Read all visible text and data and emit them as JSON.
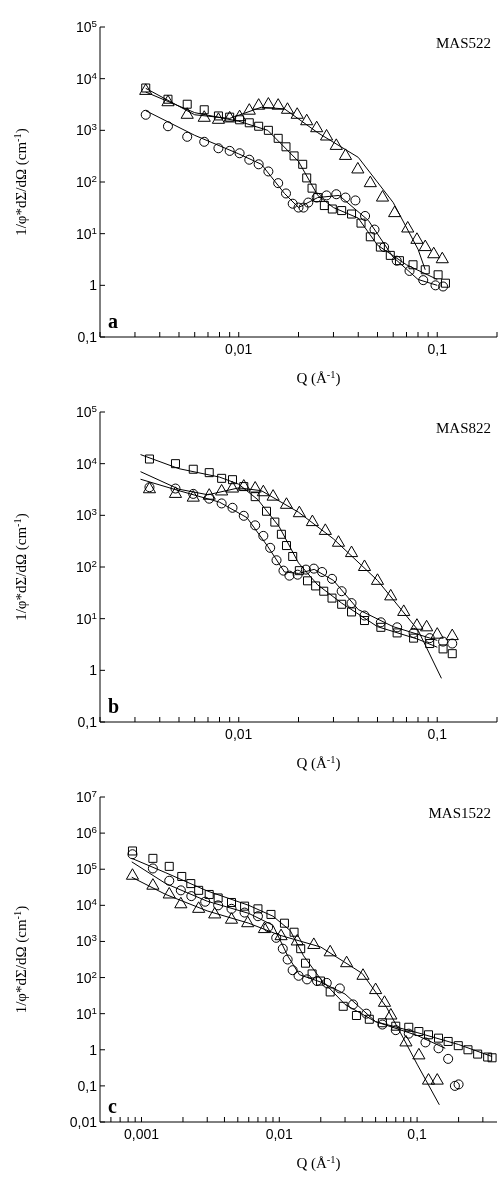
{
  "chart_data": [
    {
      "type": "scatter",
      "log": "xy",
      "xlabel": "Q (Å$^{-1}$)",
      "ylabel": "1/φ*dΣ/dΩ (cm$^{-1}$)",
      "annotations": [
        "MAS522",
        "a"
      ],
      "xlim": [
        0.002,
        0.2
      ],
      "ylim": [
        0.1,
        100000
      ],
      "xticks": [
        {
          "value": 0.002,
          "label": null
        },
        {
          "value": 0.003,
          "label": null
        },
        {
          "value": 0.004,
          "label": null
        },
        {
          "value": 0.005,
          "label": null
        },
        {
          "value": 0.006,
          "label": null
        },
        {
          "value": 0.007,
          "label": null
        },
        {
          "value": 0.008,
          "label": null
        },
        {
          "value": 0.009,
          "label": null
        },
        {
          "value": 0.01,
          "label": "0,01"
        },
        {
          "value": 0.02,
          "label": null
        },
        {
          "value": 0.03,
          "label": null
        },
        {
          "value": 0.04,
          "label": null
        },
        {
          "value": 0.05,
          "label": null
        },
        {
          "value": 0.06,
          "label": null
        },
        {
          "value": 0.07,
          "label": null
        },
        {
          "value": 0.08,
          "label": null
        },
        {
          "value": 0.09,
          "label": null
        },
        {
          "value": 0.1,
          "label": "0,1"
        },
        {
          "value": 0.2,
          "label": null
        }
      ],
      "yticks": [
        {
          "value": 0.1,
          "label": "0,1"
        },
        {
          "value": 1,
          "label": "1"
        },
        {
          "value": 10,
          "label": "10$^{1}$"
        },
        {
          "value": 100,
          "label": "10$^{2}$"
        },
        {
          "value": 1000,
          "label": "10$^{3}$"
        },
        {
          "value": 10000,
          "label": "10$^{4}$"
        },
        {
          "value": 100000,
          "label": "10$^{5}$"
        }
      ],
      "series": [
        {
          "marker": "circle",
          "color": "#000000",
          "x": [
            0.0034,
            0.0044,
            0.0055,
            0.0067,
            0.0079,
            0.009,
            0.0101,
            0.0113,
            0.0126,
            0.0141,
            0.0158,
            0.0173,
            0.0187,
            0.02,
            0.0212,
            0.0224,
            0.0247,
            0.0277,
            0.031,
            0.0345,
            0.0387,
            0.0433,
            0.0483,
            0.054,
            0.0625,
            0.0725,
            0.085,
            0.098,
            0.107
          ],
          "values": [
            2000,
            1200,
            750,
            600,
            450,
            400,
            360,
            270,
            220,
            160,
            95,
            60,
            38,
            32,
            32,
            40,
            50,
            55,
            58,
            50,
            44,
            22,
            12,
            5.5,
            3,
            1.9,
            1.26,
            1.0,
            0.95
          ]
        },
        {
          "marker": "square",
          "color": "#000000",
          "x": [
            0.0034,
            0.0044,
            0.0055,
            0.0067,
            0.0079,
            0.009,
            0.0101,
            0.0113,
            0.0126,
            0.0141,
            0.0158,
            0.0173,
            0.019,
            0.021,
            0.022,
            0.0234,
            0.025,
            0.027,
            0.0296,
            0.033,
            0.037,
            0.0413,
            0.046,
            0.0517,
            0.058,
            0.0645,
            0.0755,
            0.087,
            0.101,
            0.11
          ],
          "values": [
            6600,
            4000,
            3200,
            2500,
            1900,
            1800,
            1600,
            1400,
            1200,
            1000,
            700,
            480,
            320,
            220,
            120,
            76,
            50,
            35,
            30,
            28,
            24,
            16,
            8.7,
            5.5,
            3.8,
            3,
            2.5,
            2,
            1.6,
            1.1
          ]
        },
        {
          "marker": "triangle",
          "color": "#000000",
          "x": [
            0.0034,
            0.0044,
            0.0055,
            0.0067,
            0.0079,
            0.009,
            0.0101,
            0.0113,
            0.0126,
            0.0141,
            0.0158,
            0.0176,
            0.0197,
            0.022,
            0.0247,
            0.0277,
            0.031,
            0.0345,
            0.0398,
            0.046,
            0.053,
            0.061,
            0.071,
            0.079,
            0.087,
            0.096,
            0.106
          ],
          "values": [
            5800,
            3500,
            2000,
            1750,
            1600,
            1700,
            1800,
            2400,
            3000,
            3150,
            3000,
            2500,
            2000,
            1500,
            1100,
            760,
            500,
            320,
            175,
            95,
            50,
            25,
            12.6,
            7.6,
            5.5,
            4,
            3.2
          ]
        },
        {
          "type": "line",
          "color": "#000000",
          "x": [
            0.0034,
            0.006,
            0.01,
            0.013,
            0.017,
            0.02,
            0.025,
            0.032,
            0.045,
            0.06,
            0.08,
            0.1
          ],
          "values": [
            2400,
            800,
            350,
            220,
            60,
            32,
            50,
            55,
            18,
            3.5,
            1.3,
            1.0
          ]
        },
        {
          "type": "line",
          "color": "#000000",
          "x": [
            0.0034,
            0.006,
            0.01,
            0.014,
            0.02,
            0.025,
            0.03,
            0.04,
            0.05,
            0.07,
            0.1
          ],
          "values": [
            5500,
            2200,
            1500,
            1000,
            250,
            55,
            32,
            20,
            6,
            2.5,
            1.3
          ]
        },
        {
          "type": "line",
          "color": "#000000",
          "x": [
            0.0034,
            0.006,
            0.009,
            0.013,
            0.017,
            0.025,
            0.04,
            0.06,
            0.08,
            0.087
          ],
          "values": [
            6500,
            2000,
            1700,
            2800,
            2600,
            900,
            300,
            40,
            5,
            2
          ]
        }
      ]
    },
    {
      "type": "scatter",
      "log": "xy",
      "xlabel": "Q (Å$^{-1}$)",
      "ylabel": "1/φ*dΣ/dΩ (cm$^{-1}$)",
      "annotations": [
        "MAS822",
        "b"
      ],
      "xlim": [
        0.002,
        0.2
      ],
      "ylim": [
        0.1,
        100000
      ],
      "xticks": [
        {
          "value": 0.002,
          "label": null
        },
        {
          "value": 0.003,
          "label": null
        },
        {
          "value": 0.004,
          "label": null
        },
        {
          "value": 0.005,
          "label": null
        },
        {
          "value": 0.006,
          "label": null
        },
        {
          "value": 0.007,
          "label": null
        },
        {
          "value": 0.008,
          "label": null
        },
        {
          "value": 0.009,
          "label": null
        },
        {
          "value": 0.01,
          "label": "0,01"
        },
        {
          "value": 0.02,
          "label": null
        },
        {
          "value": 0.03,
          "label": null
        },
        {
          "value": 0.04,
          "label": null
        },
        {
          "value": 0.05,
          "label": null
        },
        {
          "value": 0.06,
          "label": null
        },
        {
          "value": 0.07,
          "label": null
        },
        {
          "value": 0.08,
          "label": null
        },
        {
          "value": 0.09,
          "label": null
        },
        {
          "value": 0.1,
          "label": "0,1"
        },
        {
          "value": 0.2,
          "label": null
        }
      ],
      "yticks": [
        {
          "value": 0.1,
          "label": "0,1"
        },
        {
          "value": 1,
          "label": "1"
        },
        {
          "value": 10,
          "label": "10$^{1}$"
        },
        {
          "value": 100,
          "label": "10$^{2}$"
        },
        {
          "value": 1000,
          "label": "10$^{3}$"
        },
        {
          "value": 10000,
          "label": "10$^{4}$"
        },
        {
          "value": 100000,
          "label": "10$^{5}$"
        }
      ],
      "series": [
        {
          "marker": "circle",
          "color": "#000000",
          "x": [
            0.00355,
            0.0048,
            0.0059,
            0.0071,
            0.0082,
            0.0093,
            0.0106,
            0.0121,
            0.0133,
            0.0144,
            0.0155,
            0.0168,
            0.018,
            0.0198,
            0.0218,
            0.0239,
            0.0263,
            0.0295,
            0.033,
            0.037,
            0.043,
            0.052,
            0.0628,
            0.076,
            0.0916,
            0.107,
            0.119
          ],
          "values": [
            3500,
            3300,
            2600,
            2100,
            1700,
            1400,
            980,
            640,
            400,
            235,
            135,
            85,
            68,
            71,
            89,
            93,
            80,
            59,
            34,
            20,
            11.5,
            8.5,
            6.8,
            5.3,
            4.2,
            3.6,
            3.3
          ]
        },
        {
          "marker": "square",
          "color": "#000000",
          "x": [
            0.00355,
            0.0048,
            0.0059,
            0.0071,
            0.0082,
            0.0093,
            0.0106,
            0.0121,
            0.0138,
            0.0152,
            0.0164,
            0.0174,
            0.0187,
            0.0202,
            0.0222,
            0.0244,
            0.0268,
            0.0295,
            0.033,
            0.037,
            0.043,
            0.052,
            0.0628,
            0.076,
            0.0916,
            0.107,
            0.119
          ],
          "values": [
            12300,
            10000,
            7800,
            6700,
            5200,
            4900,
            3600,
            2300,
            1200,
            740,
            430,
            260,
            160,
            85,
            54,
            43,
            34,
            25,
            19,
            13.5,
            9.2,
            6.8,
            5.3,
            4.2,
            3.3,
            2.6,
            2.1
          ]
        },
        {
          "marker": "triangle",
          "color": "#000000",
          "x": [
            0.00355,
            0.0048,
            0.0059,
            0.0071,
            0.0082,
            0.0093,
            0.0106,
            0.0121,
            0.0133,
            0.0149,
            0.0174,
            0.0202,
            0.0235,
            0.0273,
            0.0318,
            0.037,
            0.043,
            0.05,
            0.0583,
            0.0678,
            0.079,
            0.0884,
            0.1,
            0.119
          ],
          "values": [
            3200,
            2600,
            2200,
            2400,
            2900,
            3300,
            3600,
            3300,
            2800,
            2300,
            1600,
            1100,
            740,
            500,
            295,
            186,
            100,
            54,
            27,
            13.5,
            7.3,
            6.8,
            4.9,
            4.6
          ]
        },
        {
          "type": "line",
          "color": "#000000",
          "x": [
            0.0032,
            0.005,
            0.008,
            0.011,
            0.014,
            0.017,
            0.02,
            0.024,
            0.03,
            0.04,
            0.06,
            0.1
          ],
          "values": [
            5000,
            3000,
            1800,
            900,
            250,
            80,
            75,
            90,
            55,
            15,
            7,
            3.8
          ]
        },
        {
          "type": "line",
          "color": "#000000",
          "x": [
            0.0032,
            0.005,
            0.008,
            0.01,
            0.0125,
            0.016,
            0.02,
            0.025,
            0.033,
            0.05,
            0.08,
            0.1
          ],
          "values": [
            15000,
            8000,
            5500,
            4000,
            2000,
            600,
            120,
            45,
            20,
            7,
            4,
            2.8
          ]
        },
        {
          "type": "line",
          "color": "#000000",
          "x": [
            0.0032,
            0.005,
            0.007,
            0.01,
            0.013,
            0.02,
            0.03,
            0.05,
            0.08,
            0.105
          ],
          "values": [
            7000,
            3200,
            2500,
            3400,
            3000,
            1150,
            350,
            55,
            6,
            0.7
          ]
        }
      ]
    },
    {
      "type": "scatter",
      "log": "xy",
      "xlabel": "Q (Å$^{-1}$)",
      "ylabel": "1/φ*dΣ/dΩ (cm$^{-1}$)",
      "annotations": [
        "MAS1522",
        "c"
      ],
      "xlim": [
        0.0005,
        0.38
      ],
      "ylim": [
        0.01,
        10000000
      ],
      "xticks": [
        {
          "value": 0.0006,
          "label": null
        },
        {
          "value": 0.0007,
          "label": null
        },
        {
          "value": 0.0008,
          "label": null
        },
        {
          "value": 0.0009,
          "label": null
        },
        {
          "value": 0.001,
          "label": "0,001"
        },
        {
          "value": 0.002,
          "label": null
        },
        {
          "value": 0.003,
          "label": null
        },
        {
          "value": 0.004,
          "label": null
        },
        {
          "value": 0.005,
          "label": null
        },
        {
          "value": 0.006,
          "label": null
        },
        {
          "value": 0.007,
          "label": null
        },
        {
          "value": 0.008,
          "label": null
        },
        {
          "value": 0.009,
          "label": null
        },
        {
          "value": 0.01,
          "label": "0,01"
        },
        {
          "value": 0.02,
          "label": null
        },
        {
          "value": 0.03,
          "label": null
        },
        {
          "value": 0.04,
          "label": null
        },
        {
          "value": 0.05,
          "label": null
        },
        {
          "value": 0.06,
          "label": null
        },
        {
          "value": 0.07,
          "label": null
        },
        {
          "value": 0.08,
          "label": null
        },
        {
          "value": 0.09,
          "label": null
        },
        {
          "value": 0.1,
          "label": "0,1"
        },
        {
          "value": 0.2,
          "label": null
        },
        {
          "value": 0.3,
          "label": null
        }
      ],
      "yticks": [
        {
          "value": 0.01,
          "label": "0,01"
        },
        {
          "value": 0.1,
          "label": "0,1"
        },
        {
          "value": 1,
          "label": "1"
        },
        {
          "value": 10,
          "label": "10$^{1}$"
        },
        {
          "value": 100,
          "label": "10$^{2}$"
        },
        {
          "value": 1000,
          "label": "10$^{3}$"
        },
        {
          "value": 10000,
          "label": "10$^{4}$"
        },
        {
          "value": 100000,
          "label": "10$^{5}$"
        },
        {
          "value": 1000000,
          "label": "10$^{6}$"
        },
        {
          "value": 10000000,
          "label": "10$^{7}$"
        }
      ],
      "series": [
        {
          "marker": "circle",
          "color": "#000000",
          "x": [
            0.00086,
            0.00121,
            0.00159,
            0.00193,
            0.0023,
            0.0029,
            0.0036,
            0.0045,
            0.0056,
            0.007,
            0.0083,
            0.0095,
            0.0106,
            0.0115,
            0.0125,
            0.0138,
            0.0159,
            0.0188,
            0.0221,
            0.0275,
            0.0343,
            0.0428,
            0.056,
            0.07,
            0.087,
            0.115,
            0.143,
            0.168,
            0.188,
            0.2
          ],
          "values": [
            260000,
            105000,
            48000,
            26000,
            18000,
            12600,
            10000,
            8000,
            6300,
            5000,
            2500,
            1260,
            630,
            316,
            160,
            112,
            89,
            80,
            71,
            50,
            18,
            10,
            5,
            3.5,
            2.8,
            1.6,
            1.1,
            0.56,
            0.1,
            0.11
          ]
        },
        {
          "marker": "square",
          "color": "#000000",
          "x": [
            0.00086,
            0.00121,
            0.00159,
            0.00196,
            0.00228,
            0.0026,
            0.0031,
            0.0036,
            0.0045,
            0.0056,
            0.007,
            0.0087,
            0.0109,
            0.0128,
            0.0143,
            0.0155,
            0.0173,
            0.0199,
            0.0234,
            0.0291,
            0.0363,
            0.045,
            0.056,
            0.07,
            0.087,
            0.103,
            0.121,
            0.143,
            0.168,
            0.199,
            0.234,
            0.275,
            0.325,
            0.35
          ],
          "values": [
            320000,
            200000,
            120000,
            63000,
            40000,
            26000,
            20000,
            16000,
            12000,
            9500,
            8000,
            5600,
            3200,
            1800,
            630,
            250,
            126,
            80,
            40,
            16,
            8.9,
            7,
            5.6,
            4.5,
            4.2,
            3.2,
            2.6,
            2.1,
            1.7,
            1.3,
            1,
            0.76,
            0.63,
            0.6
          ]
        },
        {
          "marker": "triangle",
          "color": "#000000",
          "x": [
            0.00086,
            0.00121,
            0.00159,
            0.00193,
            0.0026,
            0.0034,
            0.0045,
            0.0059,
            0.0078,
            0.0103,
            0.0135,
            0.0178,
            0.0234,
            0.0308,
            0.0405,
            0.05,
            0.058,
            0.0645,
            0.083,
            0.103,
            0.121,
            0.14
          ],
          "values": [
            66000,
            35000,
            20000,
            10700,
            8000,
            5600,
            4000,
            3200,
            2200,
            1400,
            1000,
            800,
            500,
            250,
            112,
            45,
            20,
            8.9,
            1.6,
            0.7,
            0.14,
            0.14
          ]
        },
        {
          "type": "line",
          "color": "#000000",
          "x": [
            0.00085,
            0.0015,
            0.003,
            0.006,
            0.009,
            0.0115,
            0.014,
            0.02,
            0.03,
            0.05,
            0.1,
            0.16
          ],
          "values": [
            160000,
            40000,
            13000,
            6000,
            2800,
            400,
            120,
            75,
            35,
            6,
            2.5,
            1.1
          ]
        },
        {
          "type": "line",
          "color": "#000000",
          "x": [
            0.00085,
            0.0015,
            0.003,
            0.006,
            0.009,
            0.012,
            0.015,
            0.02,
            0.03,
            0.05,
            0.1,
            0.2,
            0.35
          ],
          "values": [
            200000,
            80000,
            25000,
            10000,
            5000,
            2000,
            400,
            90,
            18,
            6,
            3,
            1.4,
            0.65
          ]
        },
        {
          "type": "line",
          "color": "#000000",
          "x": [
            0.00085,
            0.0015,
            0.003,
            0.006,
            0.01,
            0.02,
            0.04,
            0.06,
            0.08,
            0.1,
            0.145
          ],
          "values": [
            60000,
            20000,
            7000,
            3200,
            1500,
            700,
            130,
            15,
            2,
            0.4,
            0.03
          ]
        }
      ]
    }
  ]
}
